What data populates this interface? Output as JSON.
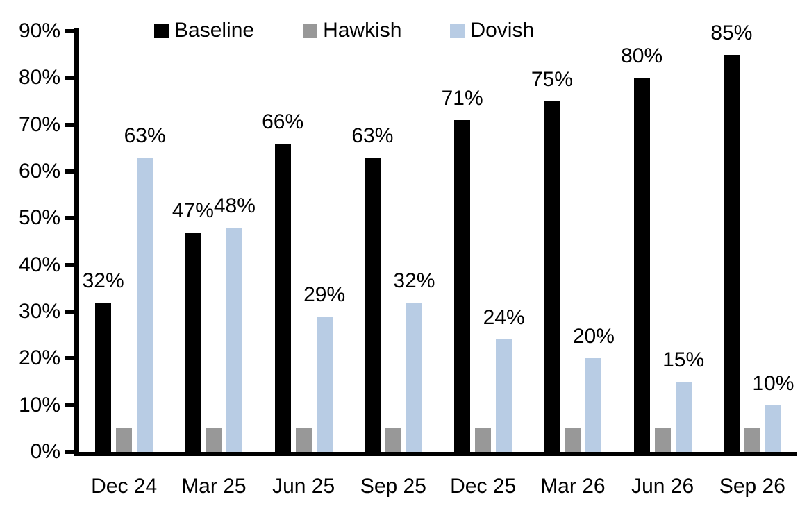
{
  "chart_data": {
    "type": "bar",
    "title": "",
    "xlabel": "",
    "ylabel": "",
    "categories": [
      "Dec 24",
      "Mar 25",
      "Jun 25",
      "Sep 25",
      "Dec 25",
      "Mar 26",
      "Jun 26",
      "Sep 26"
    ],
    "series": [
      {
        "name": "Baseline",
        "color": "#000000",
        "values": [
          32,
          47,
          66,
          63,
          71,
          75,
          80,
          85
        ],
        "labels": [
          "32%",
          "47%",
          "66%",
          "63%",
          "71%",
          "75%",
          "80%",
          "85%"
        ],
        "show_labels": true
      },
      {
        "name": "Hawkish",
        "color": "#989898",
        "values": [
          5,
          5,
          5,
          5,
          5,
          5,
          5,
          5
        ],
        "labels": [],
        "show_labels": false
      },
      {
        "name": "Dovish",
        "color": "#b8cce4",
        "values": [
          63,
          48,
          29,
          32,
          24,
          20,
          15,
          10
        ],
        "labels": [
          "63%",
          "48%",
          "29%",
          "32%",
          "24%",
          "20%",
          "15%",
          "10%"
        ],
        "show_labels": true
      }
    ],
    "ylim": [
      0,
      90
    ],
    "y_tick_step": 10,
    "y_tick_labels": [
      "0%",
      "10%",
      "20%",
      "30%",
      "40%",
      "50%",
      "60%",
      "70%",
      "80%",
      "90%"
    ],
    "grid": false,
    "legend_position": "top",
    "axis_color": "#000000",
    "text_color": "#000000"
  }
}
